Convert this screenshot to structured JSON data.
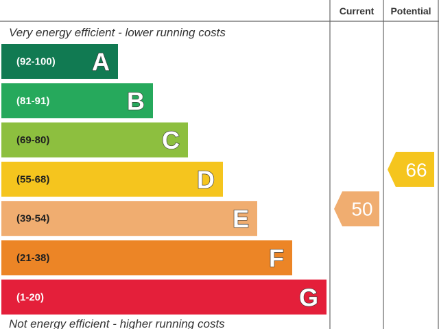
{
  "columns": {
    "current": "Current",
    "potential": "Potential"
  },
  "top_note": "Very energy efficient - lower running costs",
  "bottom_note": "Not energy efficient - higher running costs",
  "chart_data": {
    "type": "bar",
    "categories": [
      "A",
      "B",
      "C",
      "D",
      "E",
      "F",
      "G"
    ],
    "bands": [
      {
        "letter": "A",
        "range": "(92-100)",
        "color": "#117a52",
        "range_color": "#ffffff"
      },
      {
        "letter": "B",
        "range": "(81-91)",
        "color": "#26a95c",
        "range_color": "#ffffff"
      },
      {
        "letter": "C",
        "range": "(69-80)",
        "color": "#8dbf3f",
        "range_color": "#1f1f1f"
      },
      {
        "letter": "D",
        "range": "(55-68)",
        "color": "#f5c51e",
        "range_color": "#1f1f1f"
      },
      {
        "letter": "E",
        "range": "(39-54)",
        "color": "#f0ad70",
        "range_color": "#1f1f1f"
      },
      {
        "letter": "F",
        "range": "(21-38)",
        "color": "#ec8526",
        "range_color": "#1f1f1f"
      },
      {
        "letter": "G",
        "range": "(1-20)",
        "color": "#e41f3a",
        "range_color": "#ffffff"
      }
    ],
    "current": {
      "value": 50,
      "label": "50",
      "band": "E",
      "color": "#f0ad70"
    },
    "potential": {
      "value": 66,
      "label": "66",
      "band": "D",
      "color": "#f5c51e"
    }
  }
}
